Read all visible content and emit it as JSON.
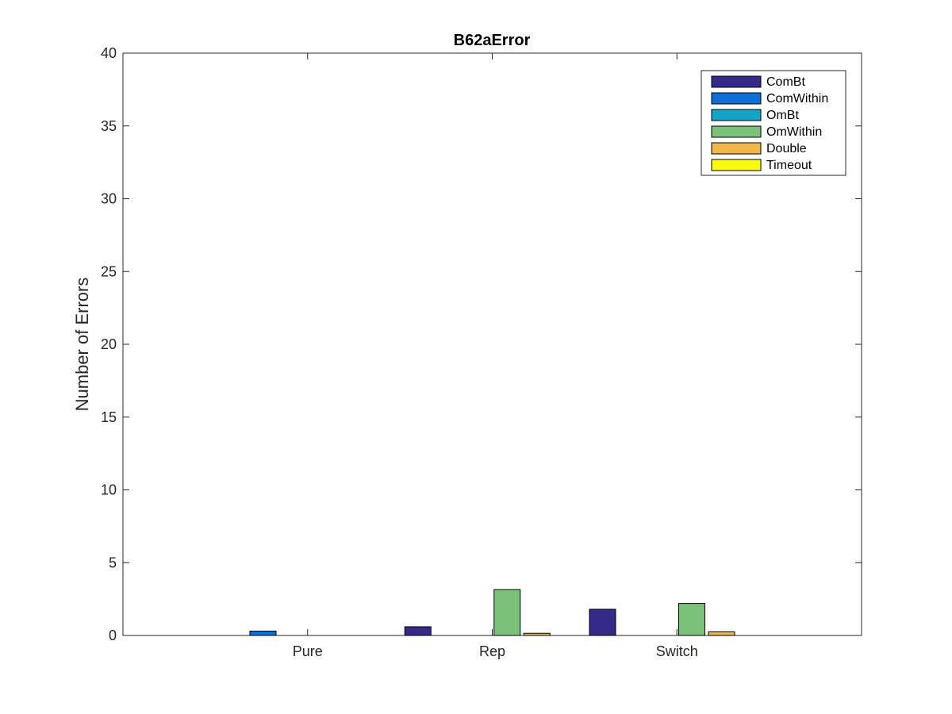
{
  "chart_data": {
    "type": "bar",
    "title": "B62aError",
    "xlabel": "",
    "ylabel": "Number of Errors",
    "ylim": [
      0,
      40
    ],
    "yticks": [
      0,
      5,
      10,
      15,
      20,
      25,
      30,
      35,
      40
    ],
    "categories": [
      "Pure",
      "Rep",
      "Switch"
    ],
    "series": [
      {
        "name": "ComBt",
        "color": "#352a87",
        "values": [
          0,
          0.6,
          1.8
        ]
      },
      {
        "name": "ComWithin",
        "color": "#0f6fd6",
        "values": [
          0.3,
          0,
          0
        ]
      },
      {
        "name": "OmBt",
        "color": "#12a3c6",
        "values": [
          0,
          0,
          0
        ]
      },
      {
        "name": "OmWithin",
        "color": "#7cc17a",
        "values": [
          0,
          3.15,
          2.2
        ]
      },
      {
        "name": "Double",
        "color": "#f2b74a",
        "values": [
          0,
          0.15,
          0.25
        ]
      },
      {
        "name": "Timeout",
        "color": "#f9fb0e",
        "values": [
          0,
          0,
          0
        ]
      }
    ],
    "legend_position": "top-right",
    "grid": false
  }
}
